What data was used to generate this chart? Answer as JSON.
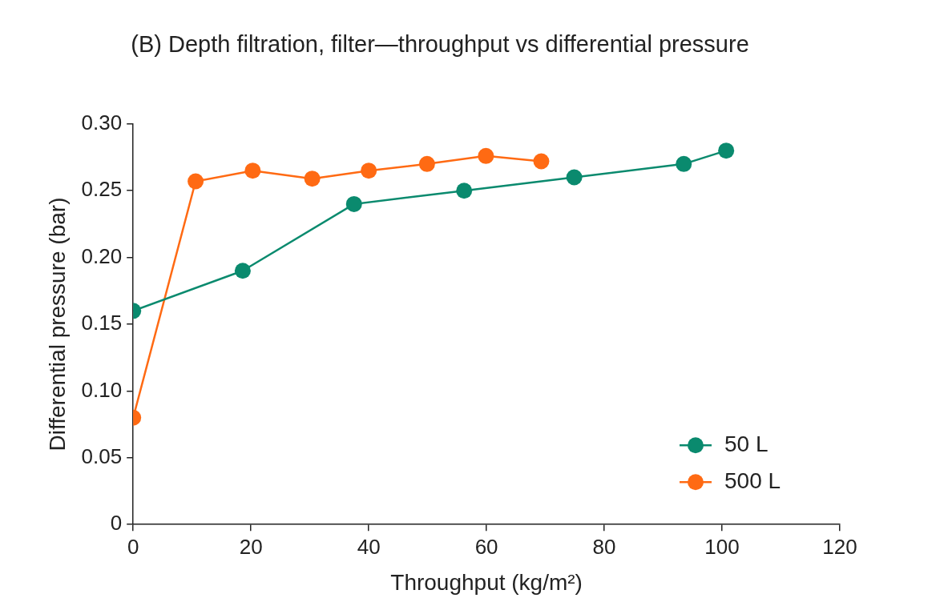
{
  "chart_data": {
    "type": "line",
    "title": "(B) Depth filtration, filter—throughput vs differential pressure",
    "xlabel": "Throughput (kg/m²)",
    "ylabel": "Differential pressure (bar)",
    "series": [
      {
        "name": "50 L",
        "color": "#0a8a6e",
        "x": [
          0,
          18.6,
          37.5,
          56.2,
          74.9,
          93.5,
          100.7
        ],
        "values": [
          0.16,
          0.19,
          0.24,
          0.25,
          0.26,
          0.27,
          0.28
        ]
      },
      {
        "name": "500 L",
        "color": "#ff6a13",
        "x": [
          0,
          10.6,
          20.3,
          30.4,
          40,
          49.9,
          59.9,
          69.3
        ],
        "values": [
          0.08,
          0.257,
          0.265,
          0.259,
          0.265,
          0.27,
          0.276,
          0.272
        ]
      }
    ],
    "xlim": [
      0,
      120
    ],
    "xticks": [
      0,
      20,
      40,
      60,
      80,
      100,
      120
    ],
    "ylim": [
      0,
      0.3
    ],
    "yticks": [
      {
        "value": 0,
        "label": "0"
      },
      {
        "value": 0.05,
        "label": "0.05"
      },
      {
        "value": 0.1,
        "label": "0.10"
      },
      {
        "value": 0.15,
        "label": "0.15"
      },
      {
        "value": 0.2,
        "label": "0.20"
      },
      {
        "value": 0.25,
        "label": "0.25"
      },
      {
        "value": 0.3,
        "label": "0.30"
      }
    ],
    "grid": false,
    "legend": "bottom right",
    "marker": "circle",
    "line_style": "solid"
  }
}
